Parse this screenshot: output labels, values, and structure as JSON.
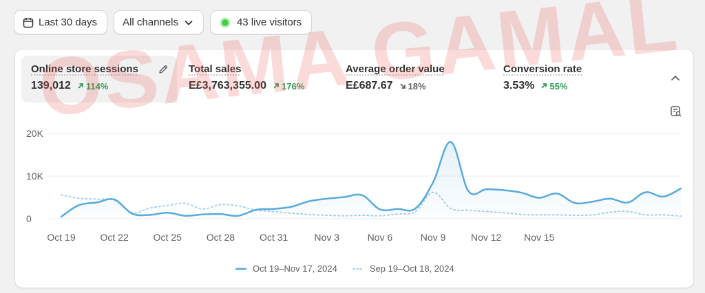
{
  "toolbar": {
    "date_range_label": "Last 30 days",
    "channels_label": "All channels",
    "live_visitors_label": "43 live visitors",
    "icons": {
      "date": "calendar-icon",
      "channels": "chevron-down-icon",
      "live": "live-dot-icon"
    }
  },
  "watermark": "OSAMA GAMAL",
  "metrics": [
    {
      "label": "Online store sessions",
      "value": "139,012",
      "delta": "114%",
      "direction": "up",
      "active": true
    },
    {
      "label": "Total sales",
      "value": "E£3,763,355.00",
      "delta": "176%",
      "direction": "up",
      "active": false
    },
    {
      "label": "Average order value",
      "value": "E£687.67",
      "delta": "18%",
      "direction": "down",
      "active": false
    },
    {
      "label": "Conversion rate",
      "value": "3.53%",
      "delta": "55%",
      "direction": "up",
      "active": false
    }
  ],
  "colors": {
    "current": "#58a9dd",
    "previous": "#a6d0ec",
    "up": "#2e9d56",
    "down": "#616161"
  },
  "chart_data": {
    "type": "line",
    "x_tick_labels": [
      "Oct 19",
      "Oct 22",
      "Oct 25",
      "Oct 28",
      "Oct 31",
      "Nov 3",
      "Nov 6",
      "Nov 9",
      "Nov 12",
      "Nov 15"
    ],
    "y_tick_labels": [
      "0",
      "10K",
      "20K"
    ],
    "ylim": [
      0,
      20000
    ],
    "grid": true,
    "legend_position": "bottom",
    "series": [
      {
        "name": "Oct 19–Nov 17, 2024",
        "style": "solid",
        "values": [
          500,
          3200,
          3800,
          4500,
          1200,
          900,
          1400,
          700,
          1000,
          1100,
          700,
          2100,
          2300,
          2800,
          4100,
          4700,
          5100,
          5500,
          2200,
          2300,
          2400,
          8500,
          18000,
          6500,
          6900,
          6700,
          6100,
          4900,
          5900,
          3700,
          4000,
          4700,
          3800,
          6200,
          5200,
          7100
        ]
      },
      {
        "name": "Sep 19–Oct 18, 2024",
        "style": "dotted",
        "values": [
          5600,
          4800,
          4600,
          4300,
          1400,
          2500,
          3100,
          3600,
          2300,
          3300,
          3000,
          2000,
          1700,
          1300,
          1000,
          800,
          700,
          800,
          700,
          1100,
          1700,
          6200,
          2400,
          2000,
          1700,
          1400,
          1000,
          900,
          900,
          800,
          900,
          1500,
          1700,
          900,
          900,
          600
        ]
      }
    ]
  }
}
